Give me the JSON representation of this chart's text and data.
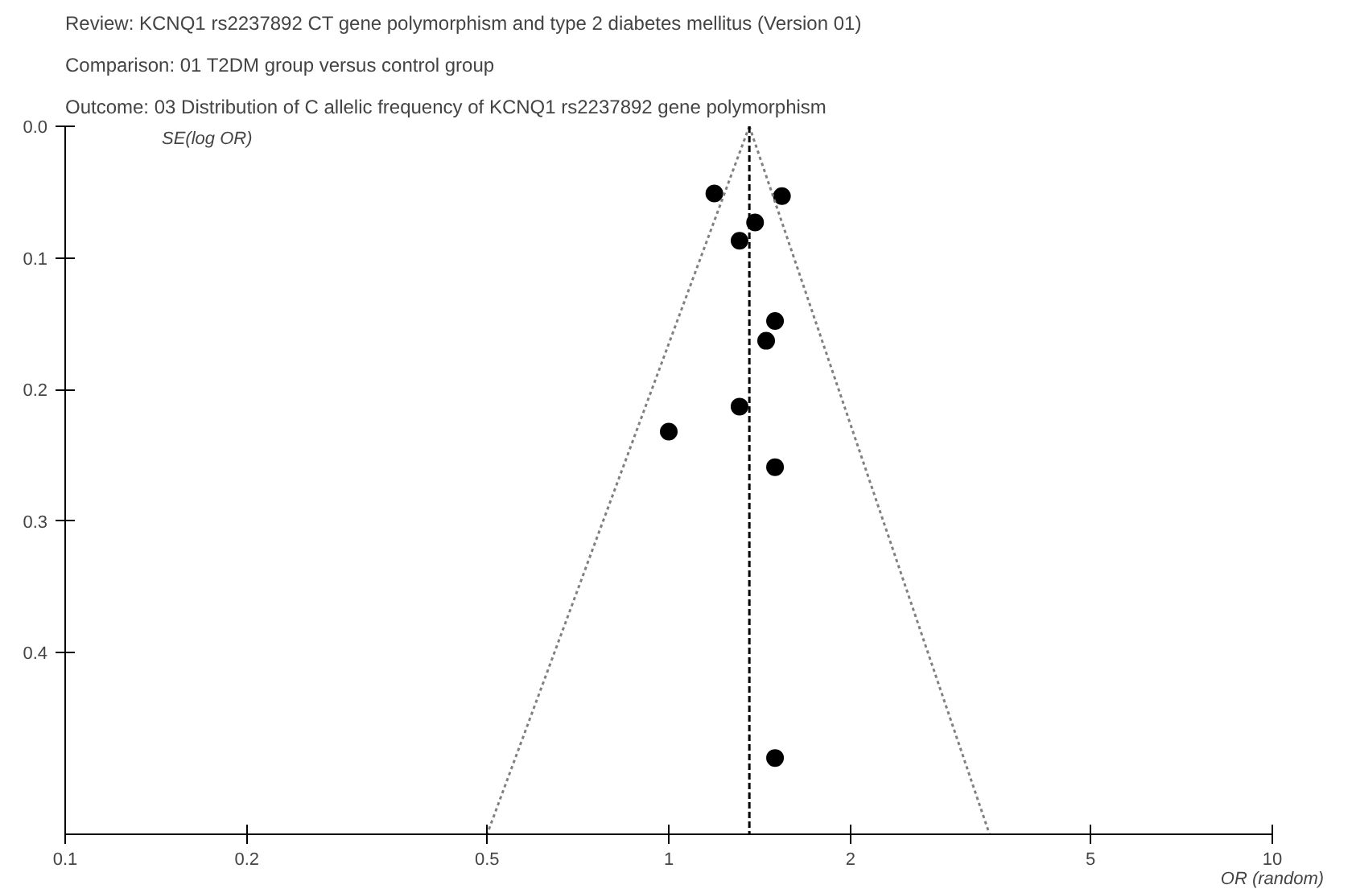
{
  "chart_data": {
    "type": "scatter",
    "title": "Review:       KCNQ1 rs2237892 CT gene polymorphism and type 2 diabetes mellitus (Version 01)",
    "subtitle": "Comparison:  01 T2DM group versus control group",
    "annotations": [
      "Outcome:     03 Distribution of C allelic frequency of KCNQ1 rs2237892 gene polymorphism"
    ],
    "xlabel": "OR (random)",
    "ylabel": "SE(log OR)",
    "log": "x",
    "grid": false,
    "marker": "circle",
    "xlim": [
      0.1,
      10
    ],
    "xticks": [
      0.1,
      0.2,
      0.5,
      1,
      2,
      5,
      10
    ],
    "ylim": [
      0.538,
      0
    ],
    "yticks": [
      {
        "value": 0,
        "label": "0.0"
      },
      0.1,
      0.2,
      0.3,
      0.4
    ],
    "ref_lines": [
      {
        "axis": "x",
        "value": 1.36,
        "label": null,
        "color": "#000000",
        "line_style": "dashed"
      }
    ],
    "series": [
      {
        "color": "#000000",
        "x": [
          1.19,
          1.54,
          1.39,
          1.31,
          1.5,
          1.45,
          1.31,
          1.0,
          1.5,
          1.5
        ],
        "values": [
          0.051,
          0.053,
          0.073,
          0.087,
          0.148,
          0.163,
          0.213,
          0.232,
          0.259,
          0.48
        ]
      },
      {
        "type": "line",
        "color": "#808080",
        "line_style": "dotted",
        "marker": "none",
        "x": [
          1.36,
          0.5
        ],
        "values": [
          0,
          0.538
        ]
      },
      {
        "type": "line",
        "color": "#808080",
        "line_style": "dotted",
        "marker": "none",
        "x": [
          1.36,
          3.4
        ],
        "values": [
          0,
          0.538
        ]
      }
    ]
  }
}
